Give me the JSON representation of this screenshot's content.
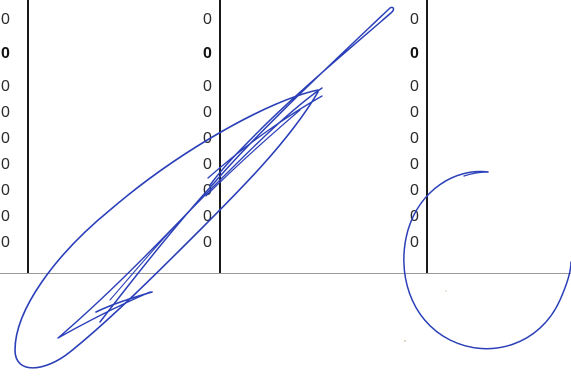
{
  "columns": [
    {
      "name": "col-left",
      "cells": [
        {
          "value": "0",
          "bold": false
        },
        {
          "value": "0",
          "bold": true
        },
        {
          "value": "0",
          "bold": false
        },
        {
          "value": "0",
          "bold": false
        },
        {
          "value": "0",
          "bold": false
        },
        {
          "value": "0",
          "bold": false
        },
        {
          "value": "0",
          "bold": false
        },
        {
          "value": "0",
          "bold": false
        },
        {
          "value": "0",
          "bold": false
        }
      ]
    },
    {
      "name": "col-middle",
      "cells": [
        {
          "value": "0",
          "bold": false
        },
        {
          "value": "0",
          "bold": true
        },
        {
          "value": "0",
          "bold": false
        },
        {
          "value": "0",
          "bold": false
        },
        {
          "value": "0",
          "bold": false
        },
        {
          "value": "0",
          "bold": false
        },
        {
          "value": "0",
          "bold": false
        },
        {
          "value": "0",
          "bold": false
        },
        {
          "value": "0",
          "bold": false
        }
      ]
    },
    {
      "name": "col-right",
      "cells": [
        {
          "value": "0",
          "bold": false
        },
        {
          "value": "0",
          "bold": true
        },
        {
          "value": "0",
          "bold": false
        },
        {
          "value": "0",
          "bold": false
        },
        {
          "value": "0",
          "bold": false
        },
        {
          "value": "0",
          "bold": false
        },
        {
          "value": "0",
          "bold": false
        },
        {
          "value": "0",
          "bold": false
        },
        {
          "value": "0",
          "bold": false
        }
      ]
    }
  ],
  "signature": {
    "description_hidden": "",
    "ink_color": "#2a3fb8"
  },
  "colors": {
    "rule": "#1a1a1a",
    "separator": "#9a9a9a",
    "text": "#2b2b2b"
  }
}
